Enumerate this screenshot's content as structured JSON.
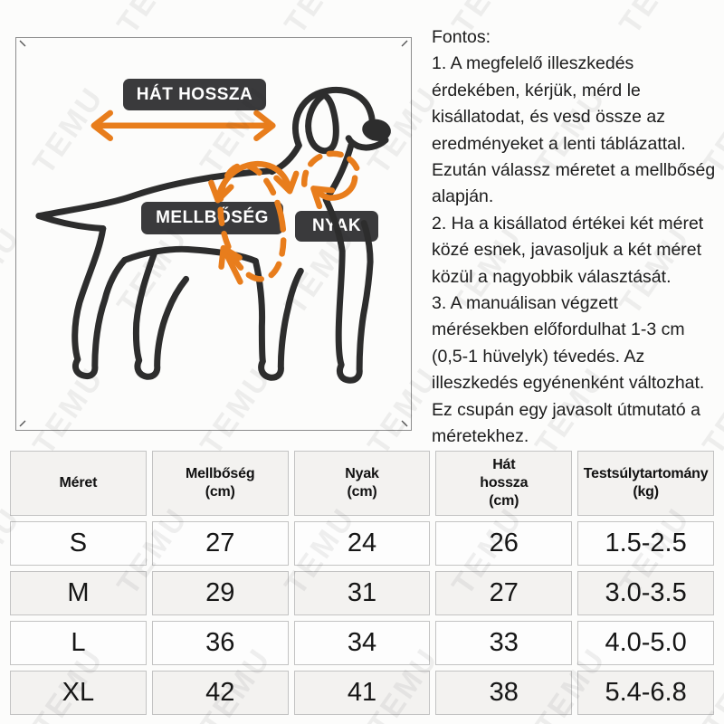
{
  "watermark": {
    "text": "TEMU"
  },
  "diagram": {
    "labels": {
      "back_length": "HÁT HOSSZA",
      "chest": "MELLBŐSÉG",
      "neck": "NYAK"
    },
    "accent_color": "#E87D1C",
    "label_bg_color": "#3A3A3C",
    "outline_color": "#2D2D2D"
  },
  "notes": {
    "title": "Fontos:",
    "paragraphs": [
      "1. A megfelelő illeszkedés érdekében, kérjük, mérd le kisállatodat, és vesd össze az eredményeket a lenti táblázattal. Ezután válassz méretet a mellbőség alapján.",
      "2. Ha a kisállatod értékei két méret közé esnek, javasoljuk a két méret közül a nagyobbik választását.",
      "3. A manuálisan végzett mérésekben előfordulhat 1-3 cm (0,5-1 hüvelyk) tévedés. Az illeszkedés egyénenként változhat.",
      "Ez csupán egy javasolt útmutató a méretekhez."
    ]
  },
  "size_table": {
    "columns": [
      [
        "Méret"
      ],
      [
        "Mellbőség",
        "(cm)"
      ],
      [
        "Nyak",
        "(cm)"
      ],
      [
        "Hát",
        "hossza",
        "(cm)"
      ],
      [
        "Testsúlytartomány",
        "(kg)"
      ]
    ],
    "rows": [
      [
        "S",
        "27",
        "24",
        "26",
        "1.5-2.5"
      ],
      [
        "M",
        "29",
        "31",
        "27",
        "3.0-3.5"
      ],
      [
        "L",
        "36",
        "34",
        "33",
        "4.0-5.0"
      ],
      [
        "XL",
        "42",
        "41",
        "38",
        "5.4-6.8"
      ]
    ]
  }
}
